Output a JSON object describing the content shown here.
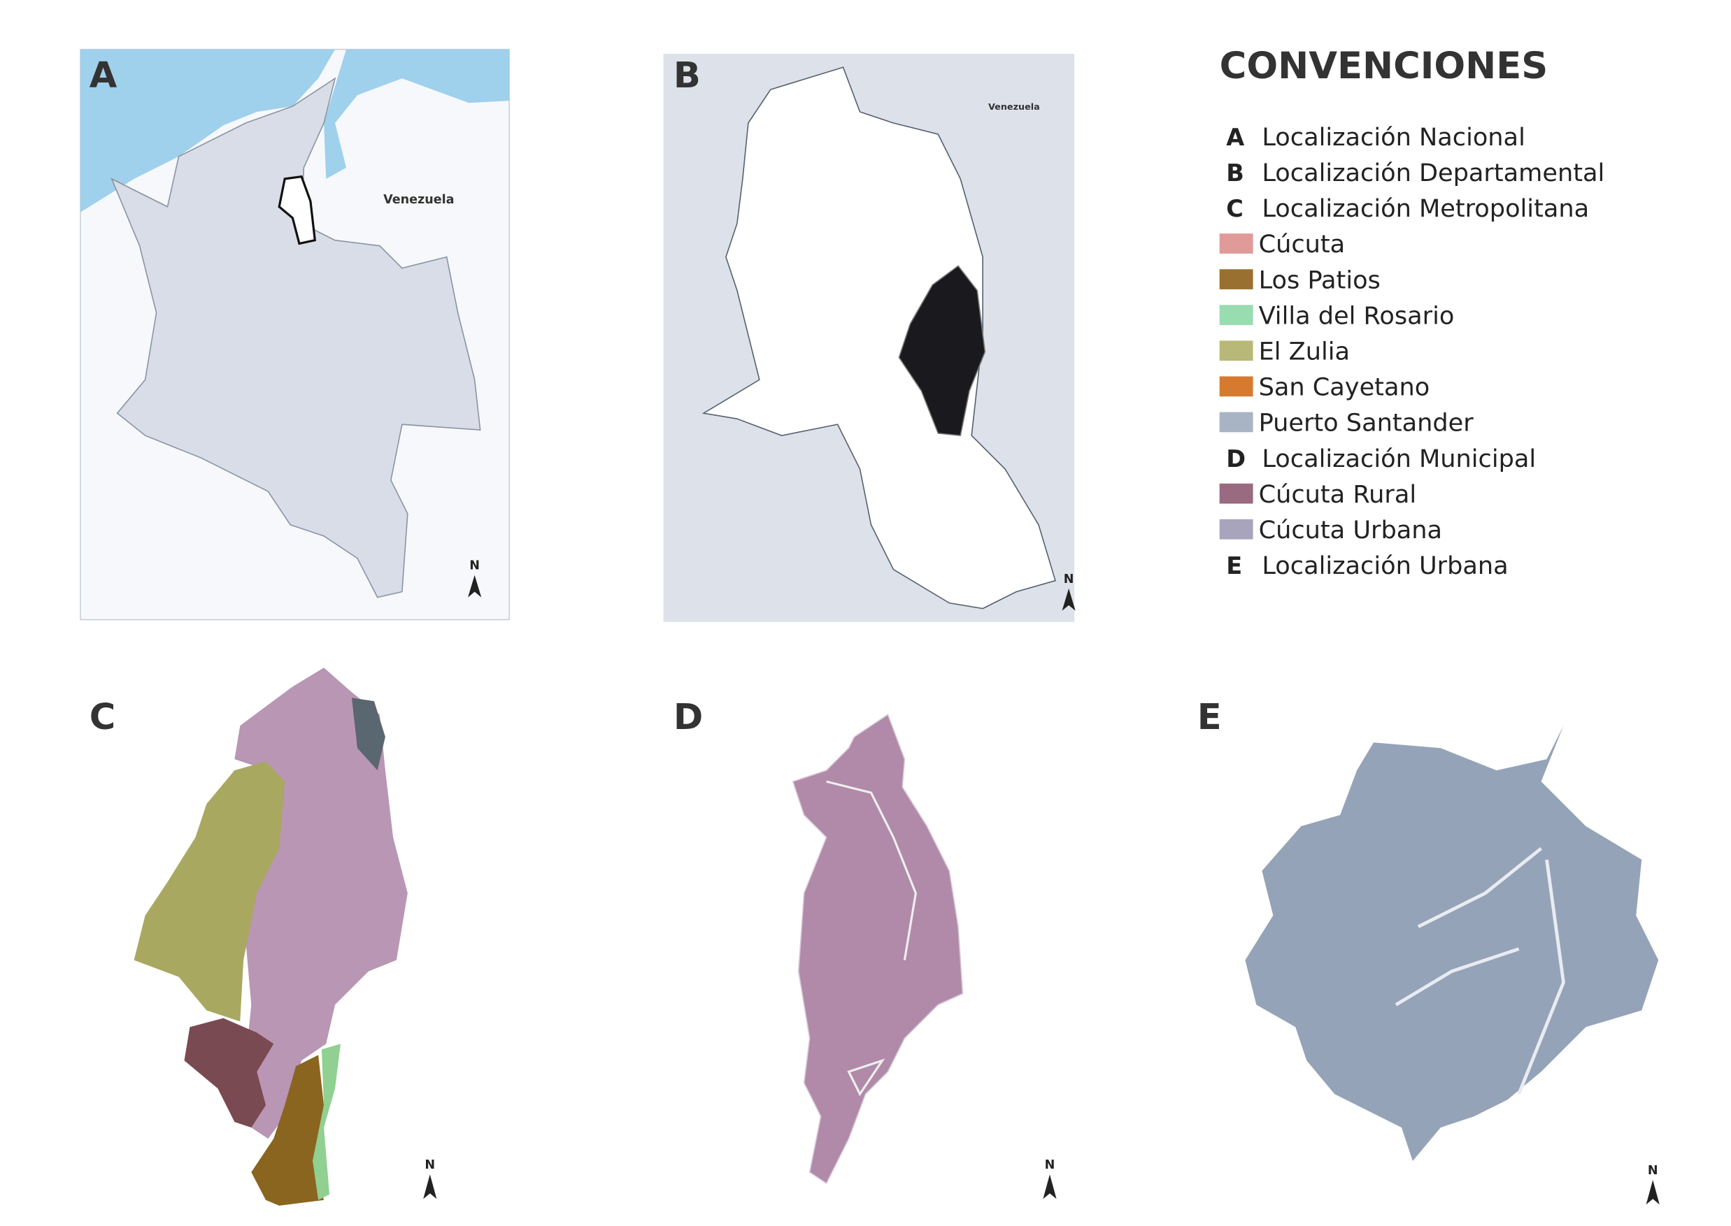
{
  "legend": {
    "title": "CONVENCIONES",
    "items": [
      {
        "key": "A",
        "label": "Localización Nacional"
      },
      {
        "key": "B",
        "label": "Localización Departamental"
      },
      {
        "key": "C",
        "label": "Localización Metropolitana"
      },
      {
        "color": "#e09a98",
        "label": "Cúcuta"
      },
      {
        "color": "#9a7030",
        "label": "Los Patios"
      },
      {
        "color": "#98dcb0",
        "label": "Villa del Rosario"
      },
      {
        "color": "#b8b878",
        "label": "El Zulia"
      },
      {
        "color": "#d67a30",
        "label": "San Cayetano"
      },
      {
        "color": "#a8b4c4",
        "label": "Puerto Santander"
      },
      {
        "key": "D",
        "label": "Localización Municipal"
      },
      {
        "color": "#9a6a80",
        "label": "Cúcuta Rural"
      },
      {
        "color": "#a8a4bc",
        "label": "Cúcuta Urbana"
      },
      {
        "key": "E",
        "label": "Localización Urbana"
      }
    ]
  },
  "panels": [
    {
      "label": "A",
      "place_label": "Venezuela",
      "north": "N"
    },
    {
      "label": "B",
      "place_label": "Venezuela",
      "north": "N"
    },
    {
      "label": "C",
      "north": "N"
    },
    {
      "label": "D",
      "north": "N"
    },
    {
      "label": "E",
      "north": "N"
    }
  ]
}
